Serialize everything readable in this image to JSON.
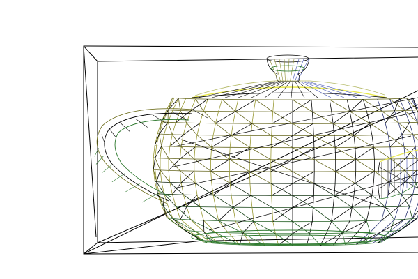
{
  "scene": {
    "subject": "teapot-wireframe",
    "colors": {
      "background": "#ffffff",
      "frame": "#000000",
      "mesh": "#000000",
      "highlight": "#e8e84a",
      "shadow_side": "#3f4fb0",
      "base": "#2f7a2f"
    }
  }
}
